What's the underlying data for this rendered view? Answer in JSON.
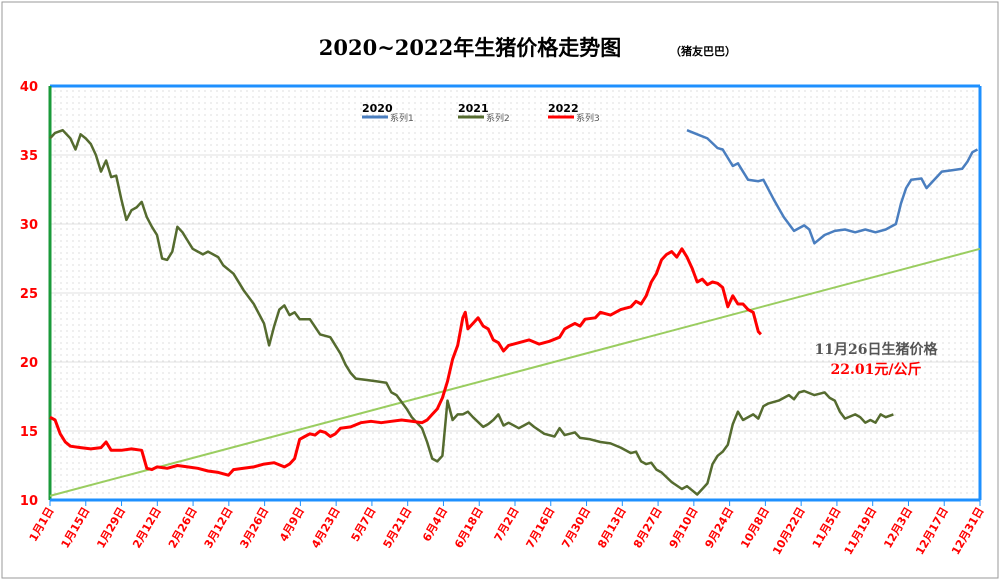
{
  "chart_data": {
    "type": "line",
    "title": "2020~2022年生猪价格走势图",
    "title_note": "（猪友巴巴）",
    "ylim": [
      10,
      40
    ],
    "y_ticks": [
      10,
      15,
      20,
      25,
      30,
      35,
      40
    ],
    "x_ticks": [
      "1月1日",
      "1月15日",
      "1月29日",
      "2月12日",
      "2月26日",
      "3月12日",
      "3月26日",
      "4月9日",
      "4月23日",
      "5月7日",
      "5月21日",
      "6月4日",
      "6月18日",
      "7月2日",
      "7月16日",
      "7月30日",
      "8月13日",
      "8月27日",
      "9月10日",
      "9月24日",
      "10月8日",
      "10月22日",
      "11月5日",
      "11月19日",
      "12月3日",
      "12月17日",
      "12月31日"
    ],
    "legend": [
      {
        "year": "2020",
        "label": "系列1",
        "color": "#4a7ebf"
      },
      {
        "year": "2021",
        "label": "系列2",
        "color": "#556b2f"
      },
      {
        "year": "2022",
        "label": "系列3",
        "color": "#ff0000"
      }
    ],
    "series": [
      {
        "name": "系列1",
        "color": "#4a7ebf",
        "points": [
          [
            250,
            36.8
          ],
          [
            254,
            36.5
          ],
          [
            258,
            36.2
          ],
          [
            262,
            35.5
          ],
          [
            264,
            35.4
          ],
          [
            268,
            34.2
          ],
          [
            270,
            34.4
          ],
          [
            274,
            33.2
          ],
          [
            278,
            33.1
          ],
          [
            280,
            33.2
          ],
          [
            284,
            31.8
          ],
          [
            288,
            30.5
          ],
          [
            292,
            29.5
          ],
          [
            296,
            29.9
          ],
          [
            298,
            29.6
          ],
          [
            300,
            28.6
          ],
          [
            304,
            29.2
          ],
          [
            308,
            29.5
          ],
          [
            312,
            29.6
          ],
          [
            316,
            29.4
          ],
          [
            320,
            29.6
          ],
          [
            324,
            29.4
          ],
          [
            328,
            29.6
          ],
          [
            332,
            30.0
          ],
          [
            334,
            31.5
          ],
          [
            336,
            32.6
          ],
          [
            338,
            33.2
          ],
          [
            342,
            33.3
          ],
          [
            344,
            32.6
          ],
          [
            348,
            33.4
          ],
          [
            350,
            33.8
          ],
          [
            354,
            33.9
          ],
          [
            358,
            34.0
          ],
          [
            360,
            34.5
          ],
          [
            362,
            35.2
          ],
          [
            364,
            35.4
          ]
        ]
      },
      {
        "name": "系列2",
        "color": "#556b2f",
        "points": [
          [
            0,
            36.2
          ],
          [
            2,
            36.6
          ],
          [
            5,
            36.8
          ],
          [
            8,
            36.2
          ],
          [
            10,
            35.4
          ],
          [
            12,
            36.5
          ],
          [
            14,
            36.2
          ],
          [
            16,
            35.8
          ],
          [
            18,
            35.0
          ],
          [
            20,
            33.8
          ],
          [
            22,
            34.6
          ],
          [
            24,
            33.4
          ],
          [
            26,
            33.5
          ],
          [
            28,
            31.8
          ],
          [
            30,
            30.3
          ],
          [
            32,
            31.0
          ],
          [
            34,
            31.2
          ],
          [
            36,
            31.6
          ],
          [
            38,
            30.5
          ],
          [
            40,
            29.8
          ],
          [
            42,
            29.2
          ],
          [
            44,
            27.5
          ],
          [
            46,
            27.4
          ],
          [
            48,
            28.0
          ],
          [
            50,
            29.8
          ],
          [
            52,
            29.4
          ],
          [
            54,
            28.8
          ],
          [
            56,
            28.2
          ],
          [
            58,
            28.0
          ],
          [
            60,
            27.8
          ],
          [
            62,
            28.0
          ],
          [
            66,
            27.6
          ],
          [
            68,
            27.0
          ],
          [
            72,
            26.4
          ],
          [
            76,
            25.2
          ],
          [
            80,
            24.2
          ],
          [
            84,
            22.8
          ],
          [
            86,
            21.2
          ],
          [
            88,
            22.6
          ],
          [
            90,
            23.8
          ],
          [
            92,
            24.1
          ],
          [
            94,
            23.4
          ],
          [
            96,
            23.6
          ],
          [
            98,
            23.1
          ],
          [
            102,
            23.1
          ],
          [
            106,
            22.0
          ],
          [
            110,
            21.8
          ],
          [
            114,
            20.6
          ],
          [
            116,
            19.8
          ],
          [
            118,
            19.2
          ],
          [
            120,
            18.8
          ],
          [
            124,
            18.7
          ],
          [
            128,
            18.6
          ],
          [
            132,
            18.5
          ],
          [
            134,
            17.8
          ],
          [
            136,
            17.6
          ],
          [
            140,
            16.6
          ],
          [
            142,
            16.0
          ],
          [
            146,
            15.2
          ],
          [
            148,
            14.2
          ],
          [
            150,
            13.0
          ],
          [
            152,
            12.8
          ],
          [
            154,
            13.2
          ],
          [
            156,
            17.2
          ],
          [
            158,
            15.8
          ],
          [
            160,
            16.2
          ],
          [
            162,
            16.2
          ],
          [
            164,
            16.4
          ],
          [
            166,
            16.0
          ],
          [
            170,
            15.3
          ],
          [
            172,
            15.5
          ],
          [
            174,
            15.8
          ],
          [
            176,
            16.2
          ],
          [
            178,
            15.4
          ],
          [
            180,
            15.6
          ],
          [
            184,
            15.2
          ],
          [
            186,
            15.4
          ],
          [
            188,
            15.6
          ],
          [
            190,
            15.3
          ],
          [
            194,
            14.8
          ],
          [
            198,
            14.6
          ],
          [
            200,
            15.2
          ],
          [
            202,
            14.7
          ],
          [
            206,
            14.9
          ],
          [
            208,
            14.5
          ],
          [
            212,
            14.4
          ],
          [
            216,
            14.2
          ],
          [
            220,
            14.1
          ],
          [
            224,
            13.8
          ],
          [
            228,
            13.4
          ],
          [
            230,
            13.5
          ],
          [
            232,
            12.8
          ],
          [
            234,
            12.6
          ],
          [
            236,
            12.7
          ],
          [
            238,
            12.2
          ],
          [
            240,
            12.0
          ],
          [
            244,
            11.3
          ],
          [
            248,
            10.8
          ],
          [
            250,
            11.0
          ],
          [
            252,
            10.7
          ],
          [
            254,
            10.4
          ],
          [
            256,
            10.8
          ],
          [
            258,
            11.2
          ],
          [
            260,
            12.6
          ],
          [
            262,
            13.2
          ],
          [
            264,
            13.5
          ],
          [
            266,
            14.0
          ],
          [
            268,
            15.5
          ],
          [
            270,
            16.4
          ],
          [
            272,
            15.8
          ],
          [
            276,
            16.2
          ],
          [
            278,
            15.9
          ],
          [
            280,
            16.8
          ],
          [
            282,
            17.0
          ],
          [
            286,
            17.2
          ],
          [
            288,
            17.4
          ],
          [
            290,
            17.6
          ],
          [
            292,
            17.3
          ],
          [
            294,
            17.8
          ],
          [
            296,
            17.9
          ],
          [
            300,
            17.6
          ],
          [
            304,
            17.8
          ],
          [
            306,
            17.4
          ],
          [
            308,
            17.2
          ],
          [
            310,
            16.4
          ],
          [
            312,
            15.9
          ],
          [
            316,
            16.2
          ],
          [
            318,
            16.0
          ],
          [
            320,
            15.6
          ],
          [
            322,
            15.8
          ],
          [
            324,
            15.6
          ],
          [
            326,
            16.2
          ],
          [
            328,
            16.0
          ],
          [
            331,
            16.2
          ]
        ]
      },
      {
        "name": "系列3",
        "color": "#ff0000",
        "points": [
          [
            0,
            16.0
          ],
          [
            2,
            15.8
          ],
          [
            4,
            14.8
          ],
          [
            6,
            14.2
          ],
          [
            8,
            13.9
          ],
          [
            12,
            13.8
          ],
          [
            16,
            13.7
          ],
          [
            20,
            13.8
          ],
          [
            22,
            14.2
          ],
          [
            24,
            13.6
          ],
          [
            28,
            13.6
          ],
          [
            32,
            13.7
          ],
          [
            36,
            13.6
          ],
          [
            38,
            12.3
          ],
          [
            40,
            12.2
          ],
          [
            42,
            12.4
          ],
          [
            46,
            12.3
          ],
          [
            50,
            12.5
          ],
          [
            54,
            12.4
          ],
          [
            58,
            12.3
          ],
          [
            62,
            12.1
          ],
          [
            66,
            12.0
          ],
          [
            70,
            11.8
          ],
          [
            72,
            12.2
          ],
          [
            76,
            12.3
          ],
          [
            80,
            12.4
          ],
          [
            84,
            12.6
          ],
          [
            88,
            12.7
          ],
          [
            92,
            12.4
          ],
          [
            94,
            12.6
          ],
          [
            96,
            13.0
          ],
          [
            98,
            14.4
          ],
          [
            100,
            14.6
          ],
          [
            102,
            14.8
          ],
          [
            104,
            14.7
          ],
          [
            106,
            15.0
          ],
          [
            108,
            14.9
          ],
          [
            110,
            14.6
          ],
          [
            112,
            14.8
          ],
          [
            114,
            15.2
          ],
          [
            118,
            15.3
          ],
          [
            122,
            15.6
          ],
          [
            126,
            15.7
          ],
          [
            130,
            15.6
          ],
          [
            134,
            15.7
          ],
          [
            138,
            15.8
          ],
          [
            142,
            15.7
          ],
          [
            146,
            15.6
          ],
          [
            148,
            15.8
          ],
          [
            150,
            16.2
          ],
          [
            152,
            16.6
          ],
          [
            154,
            17.4
          ],
          [
            156,
            18.6
          ],
          [
            158,
            20.2
          ],
          [
            160,
            21.2
          ],
          [
            162,
            23.2
          ],
          [
            163,
            23.6
          ],
          [
            164,
            22.4
          ],
          [
            166,
            22.8
          ],
          [
            168,
            23.2
          ],
          [
            170,
            22.6
          ],
          [
            172,
            22.4
          ],
          [
            174,
            21.6
          ],
          [
            176,
            21.4
          ],
          [
            178,
            20.8
          ],
          [
            180,
            21.2
          ],
          [
            184,
            21.4
          ],
          [
            188,
            21.6
          ],
          [
            192,
            21.3
          ],
          [
            196,
            21.5
          ],
          [
            200,
            21.8
          ],
          [
            202,
            22.4
          ],
          [
            204,
            22.6
          ],
          [
            206,
            22.8
          ],
          [
            208,
            22.6
          ],
          [
            210,
            23.1
          ],
          [
            214,
            23.2
          ],
          [
            216,
            23.6
          ],
          [
            220,
            23.4
          ],
          [
            224,
            23.8
          ],
          [
            228,
            24.0
          ],
          [
            230,
            24.4
          ],
          [
            232,
            24.2
          ],
          [
            234,
            24.8
          ],
          [
            236,
            25.8
          ],
          [
            238,
            26.4
          ],
          [
            240,
            27.4
          ],
          [
            242,
            27.8
          ],
          [
            244,
            28.0
          ],
          [
            246,
            27.6
          ],
          [
            248,
            28.2
          ],
          [
            250,
            27.6
          ],
          [
            252,
            26.8
          ],
          [
            254,
            25.8
          ],
          [
            256,
            26.0
          ],
          [
            258,
            25.6
          ],
          [
            260,
            25.8
          ],
          [
            262,
            25.7
          ],
          [
            264,
            25.4
          ],
          [
            266,
            24.0
          ],
          [
            268,
            24.8
          ],
          [
            270,
            24.2
          ],
          [
            272,
            24.2
          ],
          [
            274,
            23.8
          ],
          [
            276,
            23.6
          ],
          [
            278,
            22.2
          ],
          [
            279,
            22.01
          ]
        ]
      }
    ],
    "trendline": {
      "color": "#9acd60",
      "from": [
        0,
        10.3
      ],
      "to": [
        365,
        28.2
      ]
    },
    "annotation": {
      "line1": "11月26日生猪价格",
      "line2": "22.01元/公斤"
    }
  }
}
